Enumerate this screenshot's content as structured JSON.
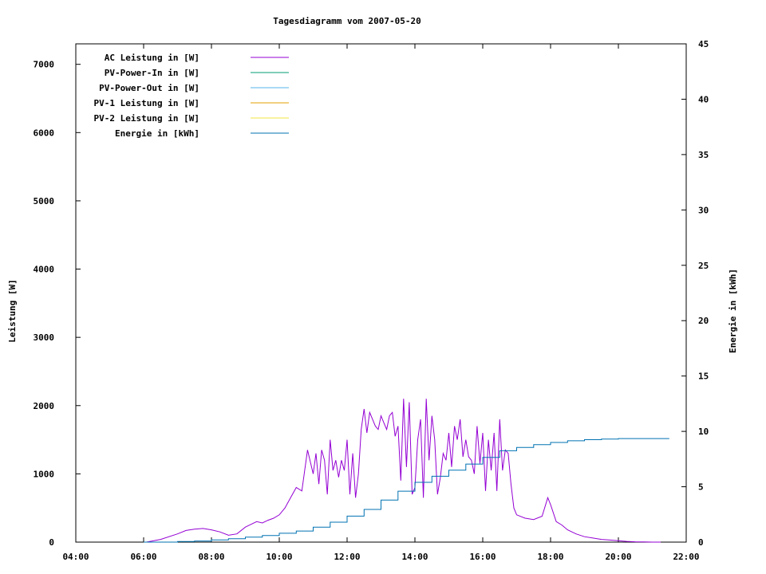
{
  "chart_data": {
    "type": "line",
    "title": "Tagesdiagramm vom 2007-05-20",
    "ylabel": "Leistung [W]",
    "y2label": "Energie in [kWh]",
    "xlim": [
      "04:00",
      "22:00"
    ],
    "ylim": [
      0,
      7300
    ],
    "y2lim": [
      0,
      45
    ],
    "x_ticks": [
      "04:00",
      "06:00",
      "08:00",
      "10:00",
      "12:00",
      "14:00",
      "16:00",
      "18:00",
      "20:00",
      "22:00"
    ],
    "y_ticks": [
      "0",
      "1000",
      "2000",
      "3000",
      "4000",
      "5000",
      "6000",
      "7000"
    ],
    "y2_ticks": [
      "0",
      "5",
      "10",
      "15",
      "20",
      "25",
      "30",
      "35",
      "40",
      "45"
    ],
    "legend_position": "top-left",
    "legend": [
      {
        "label": "AC Leistung in [W]",
        "color": "#9400d3"
      },
      {
        "label": "PV-Power-In in [W]",
        "color": "#009e73"
      },
      {
        "label": "PV-Power-Out in [W]",
        "color": "#56b4e9"
      },
      {
        "label": "PV-1 Leistung in [W]",
        "color": "#e69f00"
      },
      {
        "label": "PV-2 Leistung in [W]",
        "color": "#f0e442"
      },
      {
        "label": "Energie in [kWh]",
        "color": "#0072b2"
      }
    ],
    "series": [
      {
        "name": "AC Leistung in [W]",
        "axis": "y",
        "color": "#9400d3",
        "x": [
          "06:05",
          "06:30",
          "07:00",
          "07:15",
          "07:30",
          "07:45",
          "08:00",
          "08:15",
          "08:30",
          "08:45",
          "09:00",
          "09:10",
          "09:20",
          "09:30",
          "09:40",
          "09:50",
          "10:00",
          "10:10",
          "10:20",
          "10:30",
          "10:40",
          "10:50",
          "11:00",
          "11:05",
          "11:10",
          "11:15",
          "11:20",
          "11:25",
          "11:30",
          "11:35",
          "11:40",
          "11:45",
          "11:50",
          "11:55",
          "12:00",
          "12:05",
          "12:10",
          "12:15",
          "12:20",
          "12:25",
          "12:30",
          "12:35",
          "12:40",
          "12:45",
          "12:50",
          "12:55",
          "13:00",
          "13:05",
          "13:10",
          "13:15",
          "13:20",
          "13:25",
          "13:30",
          "13:35",
          "13:40",
          "13:45",
          "13:50",
          "13:55",
          "14:00",
          "14:05",
          "14:10",
          "14:15",
          "14:20",
          "14:25",
          "14:30",
          "14:35",
          "14:40",
          "14:45",
          "14:50",
          "14:55",
          "15:00",
          "15:05",
          "15:10",
          "15:15",
          "15:20",
          "15:25",
          "15:30",
          "15:35",
          "15:40",
          "15:45",
          "15:50",
          "15:55",
          "16:00",
          "16:05",
          "16:10",
          "16:15",
          "16:20",
          "16:25",
          "16:30",
          "16:35",
          "16:40",
          "16:45",
          "16:50",
          "16:55",
          "17:00",
          "17:15",
          "17:30",
          "17:45",
          "17:55",
          "18:00",
          "18:10",
          "18:20",
          "18:30",
          "18:45",
          "19:00",
          "19:15",
          "19:30",
          "19:45",
          "20:00",
          "20:15",
          "20:30",
          "20:45",
          "21:00",
          "21:15"
        ],
        "values": [
          0,
          40,
          120,
          170,
          190,
          200,
          180,
          150,
          100,
          120,
          220,
          260,
          300,
          280,
          320,
          350,
          400,
          500,
          650,
          800,
          750,
          1350,
          1000,
          1300,
          850,
          1350,
          1200,
          700,
          1500,
          1050,
          1200,
          950,
          1200,
          1050,
          1500,
          700,
          1300,
          650,
          1000,
          1650,
          1950,
          1600,
          1900,
          1800,
          1700,
          1650,
          1850,
          1750,
          1650,
          1850,
          1900,
          1550,
          1700,
          900,
          2100,
          1100,
          2050,
          700,
          800,
          1500,
          1800,
          650,
          2100,
          1200,
          1850,
          1500,
          700,
          950,
          1300,
          1200,
          1600,
          1100,
          1700,
          1500,
          1800,
          1250,
          1500,
          1250,
          1200,
          1000,
          1700,
          1150,
          1600,
          750,
          1500,
          1050,
          1600,
          750,
          1800,
          1050,
          1350,
          1300,
          850,
          500,
          400,
          350,
          330,
          380,
          650,
          550,
          300,
          250,
          180,
          120,
          80,
          60,
          40,
          30,
          20,
          10,
          5,
          2,
          0,
          0
        ]
      },
      {
        "name": "Energie in [kWh]",
        "axis": "y2",
        "color": "#0072b2",
        "x": [
          "06:00",
          "07:00",
          "07:30",
          "08:00",
          "08:30",
          "09:00",
          "09:30",
          "10:00",
          "10:30",
          "11:00",
          "11:30",
          "12:00",
          "12:30",
          "13:00",
          "13:30",
          "14:00",
          "14:30",
          "15:00",
          "15:30",
          "16:00",
          "16:30",
          "17:00",
          "17:30",
          "18:00",
          "18:30",
          "19:00",
          "19:30",
          "20:00",
          "20:30",
          "21:00",
          "21:30"
        ],
        "values": [
          0,
          0.05,
          0.1,
          0.2,
          0.3,
          0.45,
          0.6,
          0.8,
          1.0,
          1.35,
          1.8,
          2.35,
          2.95,
          3.8,
          4.6,
          5.4,
          5.95,
          6.5,
          7.05,
          7.65,
          8.25,
          8.55,
          8.8,
          9.0,
          9.15,
          9.25,
          9.3,
          9.35,
          9.35,
          9.35,
          9.35
        ]
      }
    ]
  }
}
